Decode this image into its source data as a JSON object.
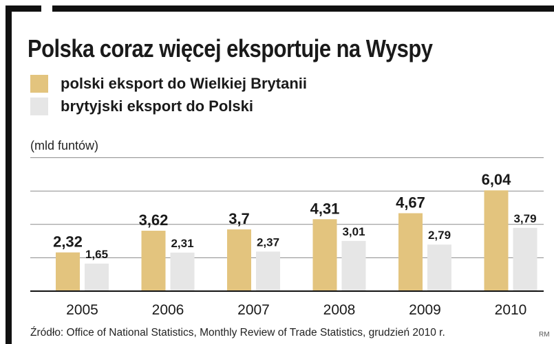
{
  "title": "Polska coraz więcej eksportuje na Wyspy",
  "unit_label": "(mld funtów)",
  "source": "Źródło: Office of National Statistics, Monthly Review of Trade Statistics, grudzień 2010 r.",
  "initials": "RM",
  "colors": {
    "series1": "#e3c47e",
    "series2": "#e6e6e6",
    "grid": "#8a8a8a",
    "frame": "#111111"
  },
  "chart_data": {
    "type": "bar",
    "categories": [
      "2005",
      "2006",
      "2007",
      "2008",
      "2009",
      "2010"
    ],
    "series": [
      {
        "name": "polski eksport do Wielkiej Brytanii",
        "values": [
          2.32,
          3.62,
          3.7,
          4.31,
          4.67,
          6.04
        ],
        "labels": [
          "2,32",
          "3,62",
          "3,7",
          "4,31",
          "4,67",
          "6,04"
        ]
      },
      {
        "name": "brytyjski eksport do Polski",
        "values": [
          1.65,
          2.31,
          2.37,
          3.01,
          2.79,
          3.79
        ],
        "labels": [
          "1,65",
          "2,31",
          "2,37",
          "3,01",
          "2,79",
          "3,79"
        ]
      }
    ],
    "ylabel": "(mld funtów)",
    "ylim": [
      0,
      8
    ],
    "grid": true,
    "legend": "top-left"
  }
}
